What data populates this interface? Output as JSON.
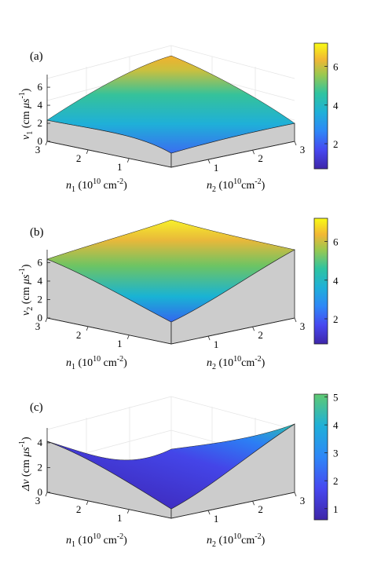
{
  "figure": {
    "ticks": {
      "n1": [
        "3",
        "2",
        "1"
      ],
      "n2": [
        "1",
        "2",
        "3"
      ]
    },
    "n1_label": {
      "sym": "n",
      "sub": "1",
      "pre": " (10",
      "sup": "10",
      "post": " cm",
      "sup2": "-2",
      "close": ")"
    },
    "n2_label": {
      "sym": "n",
      "sub": "2",
      "pre": " (10",
      "sup": "10",
      "post": "cm",
      "sup2": "-2",
      "close": ")"
    }
  },
  "chart_data": [
    {
      "type": "surface",
      "panel_label": "(a)",
      "zlabel": {
        "sym": "v",
        "sub": "1",
        "unit_pre": " (cm ",
        "mu": "μ",
        "s": "s",
        "sup": "-1",
        "close": ")"
      },
      "x": {
        "name": "n1",
        "ticks": [
          1,
          2,
          3
        ]
      },
      "y": {
        "name": "n2",
        "ticks": [
          1,
          2,
          3
        ]
      },
      "zlim": [
        0,
        7.4
      ],
      "zticks": [
        "0",
        "2",
        "4",
        "6"
      ],
      "corners": {
        "n1_min_n2_min": 1.5,
        "n1_max_n2_min": 2.0,
        "n1_min_n2_max": 1.6,
        "n1_max_n2_max": 6.9
      },
      "colorbar": {
        "range": [
          0.7,
          7.2
        ],
        "ticks": [
          "2",
          "4",
          "6"
        ]
      },
      "colormap": "parula"
    },
    {
      "type": "surface",
      "panel_label": "(b)",
      "zlabel": {
        "sym": "v",
        "sub": "2",
        "unit_pre": " (cm ",
        "mu": "μ",
        "s": "s",
        "sup": "-1",
        "close": ")"
      },
      "x": {
        "name": "n1",
        "ticks": [
          1,
          2,
          3
        ]
      },
      "y": {
        "name": "n2",
        "ticks": [
          1,
          2,
          3
        ]
      },
      "zlim": [
        0,
        7.4
      ],
      "zticks": [
        "0",
        "2",
        "4",
        "6"
      ],
      "corners": {
        "n1_min_n2_min": 0.7,
        "n1_max_n2_min": 5.8,
        "n1_min_n2_max": 6.9,
        "n1_max_n2_max": 7.1
      },
      "colorbar": {
        "range": [
          0.7,
          7.2
        ],
        "ticks": [
          "2",
          "4",
          "6"
        ]
      },
      "colormap": "parula"
    },
    {
      "type": "surface",
      "panel_label": "(c)",
      "zlabel": {
        "sym": "Δv",
        "sub": "",
        "unit_pre": " (cm ",
        "mu": "μ",
        "s": "s",
        "sup": "-1",
        "close": ")"
      },
      "x": {
        "name": "n1",
        "ticks": [
          1,
          2,
          3
        ]
      },
      "y": {
        "name": "n2",
        "ticks": [
          1,
          2,
          3
        ]
      },
      "zlim": [
        0,
        5.2
      ],
      "zticks": [
        "0",
        "2",
        "4"
      ],
      "corners": {
        "n1_min_n2_min": 0.8,
        "n1_max_n2_min": 3.7,
        "n1_min_n2_max": 5.0,
        "n1_max_n2_max": 2.0
      },
      "colorbar": {
        "range": [
          0.6,
          5.1
        ],
        "ticks": [
          "1",
          "2",
          "3",
          "4",
          "5"
        ]
      },
      "colormap": "parula"
    }
  ]
}
